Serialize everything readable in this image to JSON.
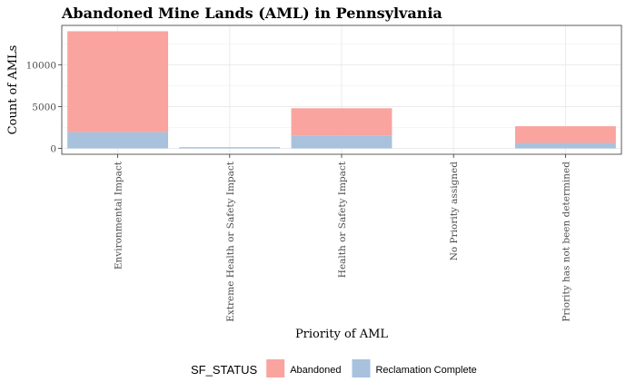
{
  "chart_data": {
    "type": "bar",
    "stacked": true,
    "title": "Abandoned Mine Lands (AML) in Pennsylvania",
    "xlabel": "Priority of AML",
    "ylabel": "Count of AMLs",
    "categories": [
      "Environmental Impact",
      "Extreme Health or Safety Impact",
      "Health or Safety Impact",
      "No Priority assigned",
      "Priority has not been determined"
    ],
    "series": [
      {
        "name": "Reclamation Complete",
        "color": "#a8c1dd",
        "values": [
          1950,
          60,
          1550,
          0,
          650
        ]
      },
      {
        "name": "Abandoned",
        "color": "#f9a49f",
        "values": [
          12050,
          90,
          3250,
          0,
          2000
        ]
      }
    ],
    "ylim": [
      -700,
      14700
    ],
    "yticks": [
      0,
      5000,
      10000
    ],
    "grid": true,
    "legend": {
      "title": "SF_STATUS",
      "position": "bottom",
      "entries": [
        {
          "label": "Abandoned",
          "color": "#f9a49f"
        },
        {
          "label": "Reclamation Complete",
          "color": "#a8c1dd"
        }
      ]
    }
  }
}
